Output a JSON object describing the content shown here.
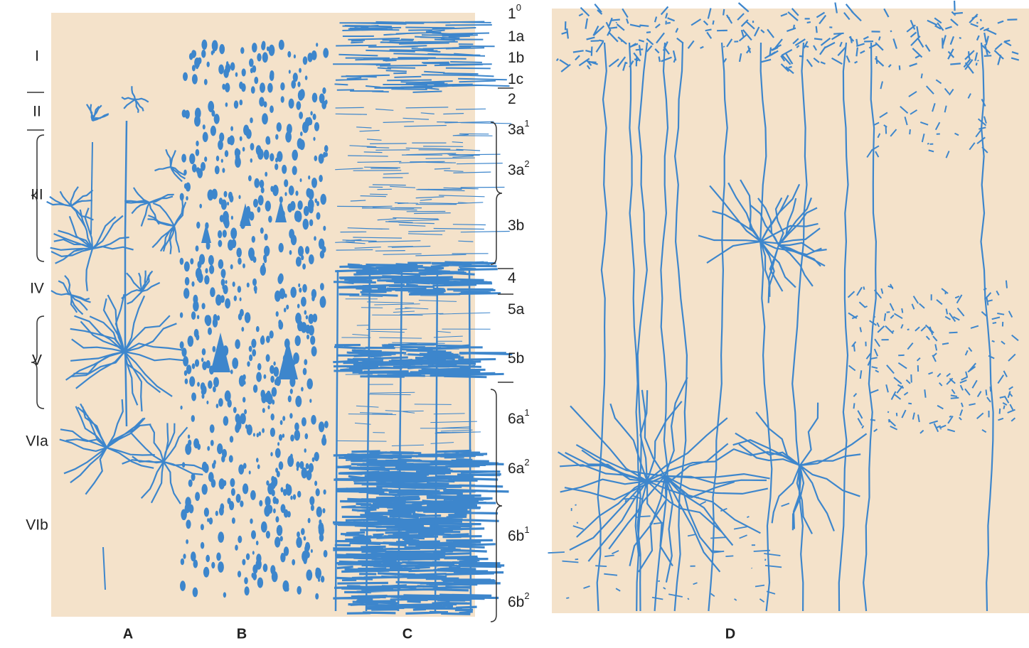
{
  "layers": [
    "I",
    "II",
    "III",
    "IV",
    "V",
    "VIa",
    "VIb"
  ],
  "sublayers": [
    {
      "text": "1",
      "sup": "0"
    },
    {
      "text": "1a"
    },
    {
      "text": "1b"
    },
    {
      "text": "1c"
    },
    {
      "text": "2"
    },
    {
      "text": "3a",
      "sup": "1"
    },
    {
      "text": "3a",
      "sup": "2"
    },
    {
      "text": "3b"
    },
    {
      "text": "4"
    },
    {
      "text": "5a"
    },
    {
      "text": "5b"
    },
    {
      "text": "6a",
      "sup": "1"
    },
    {
      "text": "6a",
      "sup": "2"
    },
    {
      "text": "6b",
      "sup": "1"
    },
    {
      "text": "6b",
      "sup": "2"
    }
  ],
  "panels": [
    "A",
    "B",
    "C",
    "D"
  ]
}
